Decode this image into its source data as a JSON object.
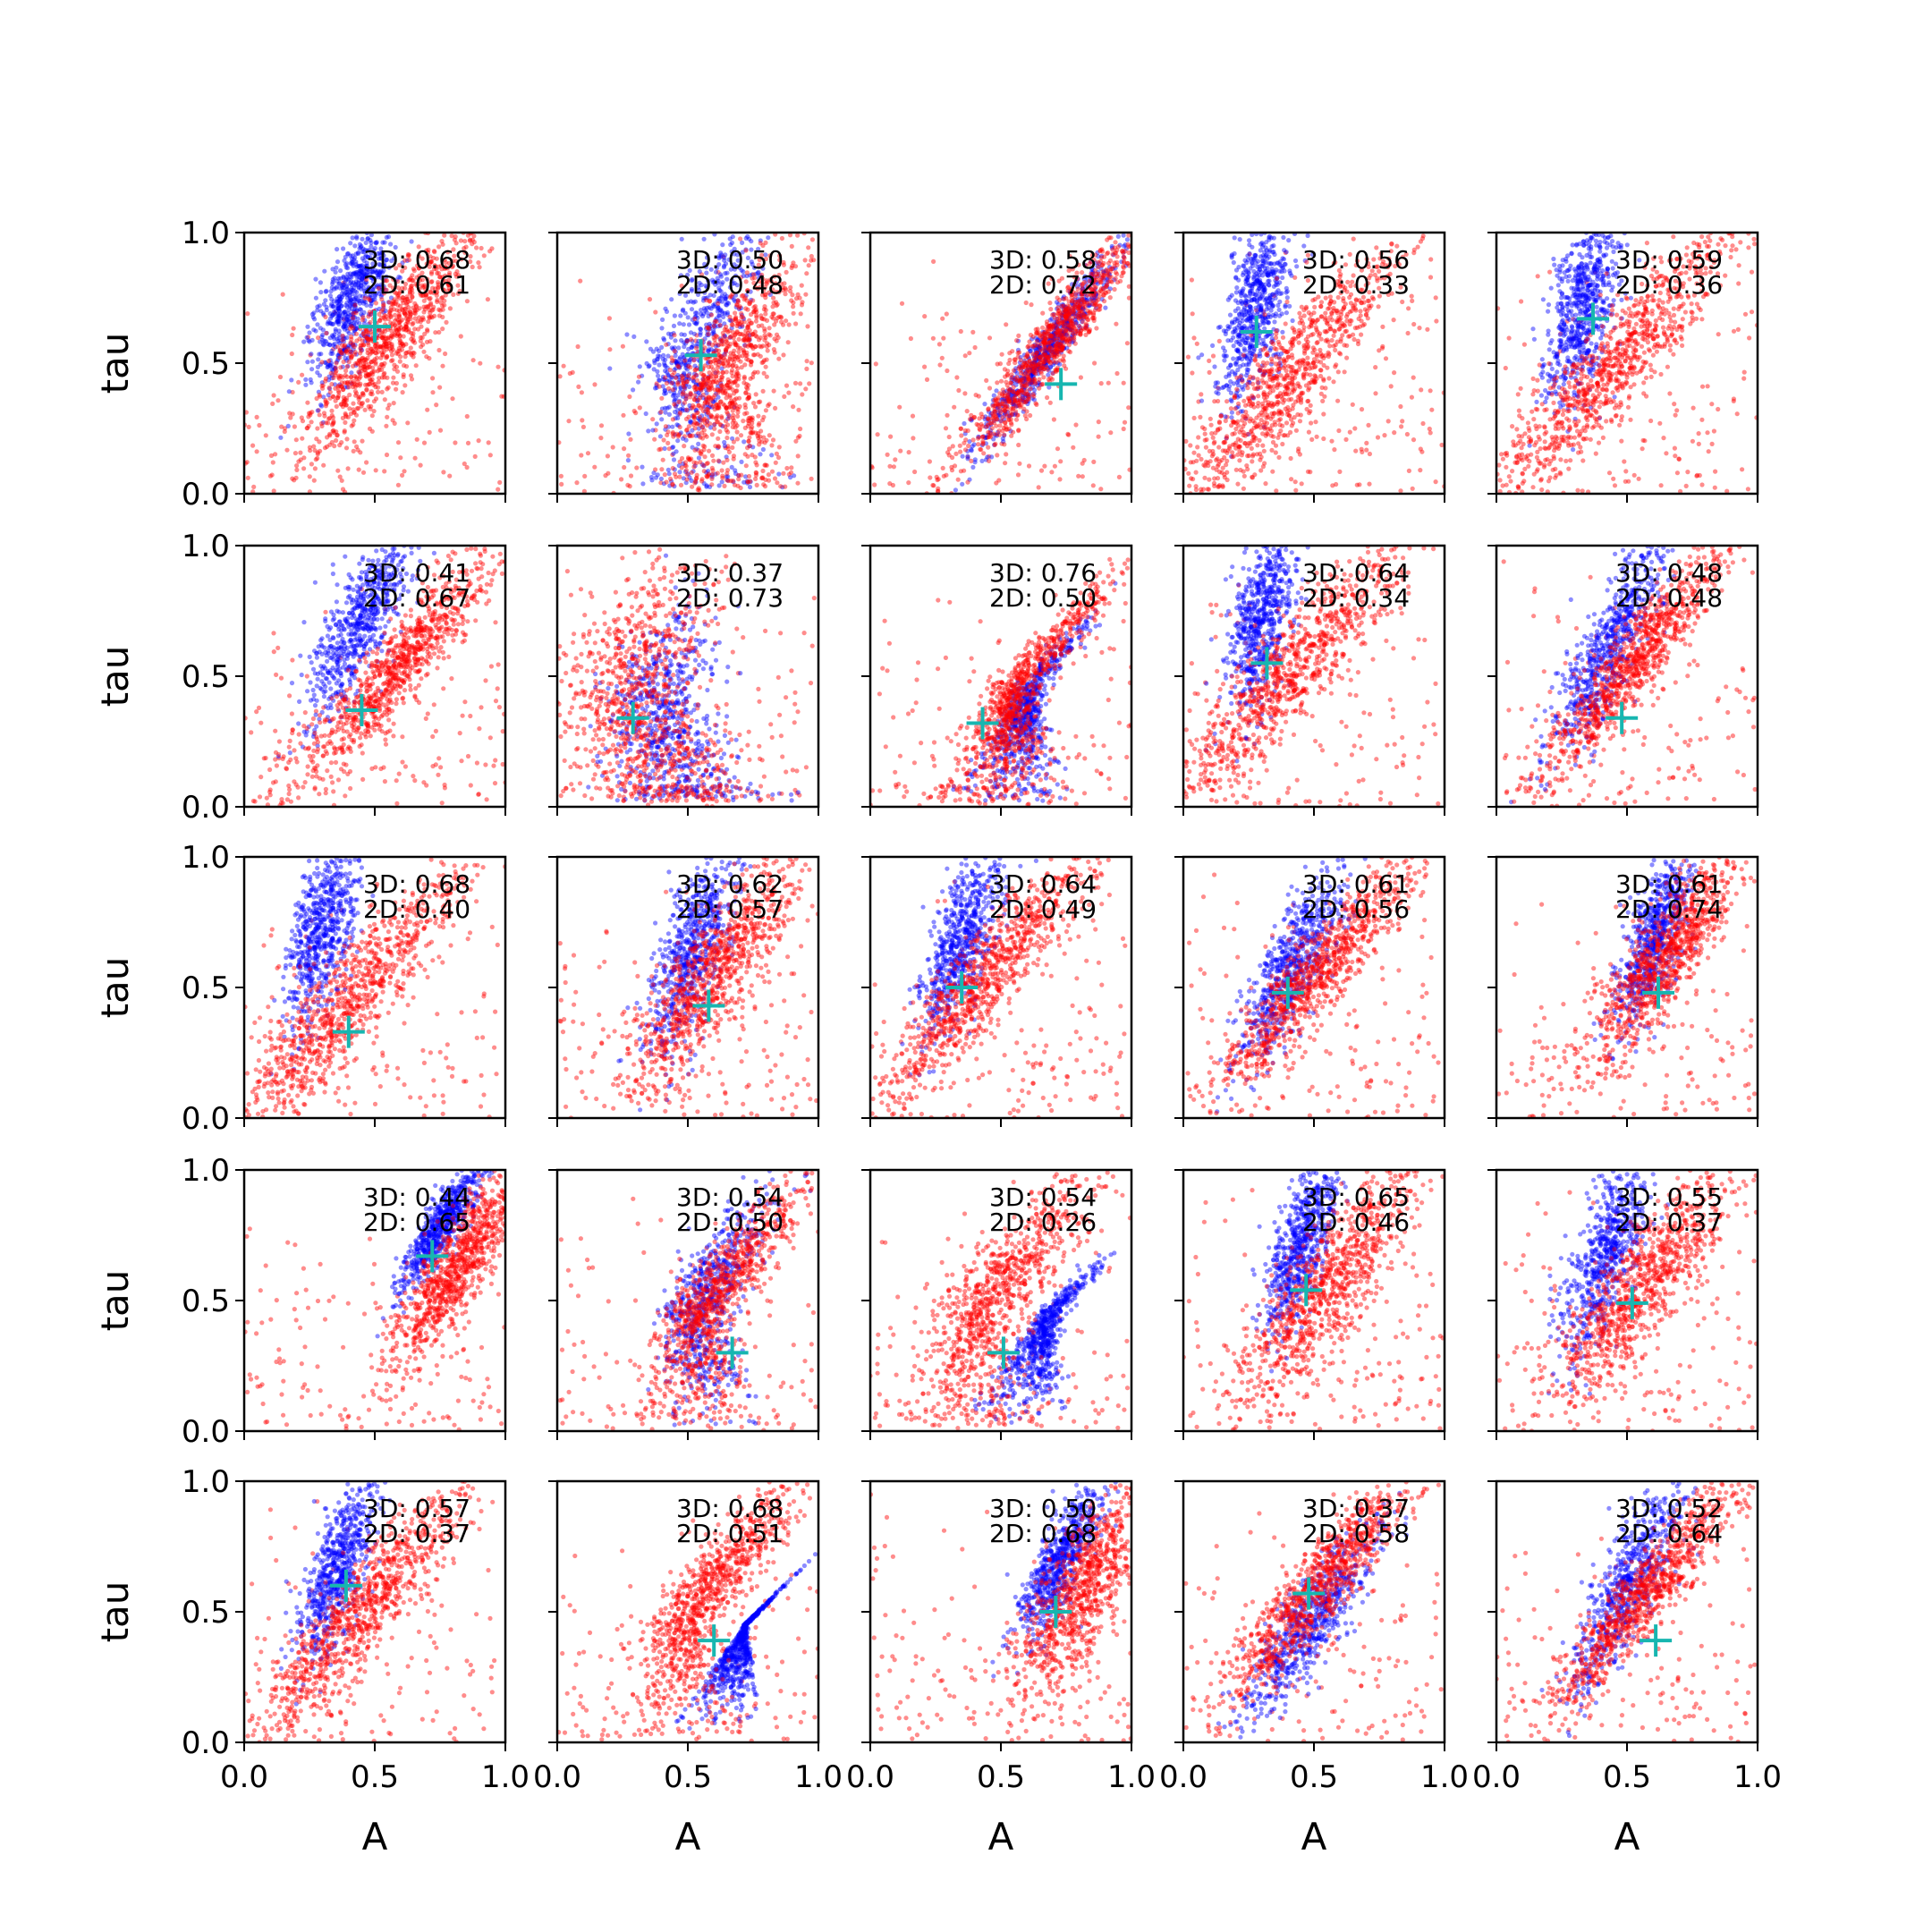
{
  "chart_data": {
    "type": "scatter",
    "layout": "5x5 grid of small multiples",
    "xlabel": "A",
    "ylabel": "tau",
    "xlim": [
      0,
      1
    ],
    "ylim": [
      0,
      1
    ],
    "xticks": [
      "0.0",
      "0.5",
      "1.0"
    ],
    "yticks": [
      "0.0",
      "0.5",
      "1.0"
    ],
    "series_colors": {
      "points_a": "#0000ff",
      "points_b": "#ff0000",
      "marker": "#17b6b0"
    },
    "grid": false,
    "legend": "none",
    "annotation_labels": {
      "first": "3D",
      "second": "2D"
    },
    "panels": [
      {
        "r3d": "0.68",
        "r2d": "0.61",
        "marker": [
          0.5,
          0.64
        ],
        "blue": {
          "cx": 0.42,
          "cy": 0.75,
          "sx": 0.07,
          "sy": 0.16,
          "tilt": -1.3,
          "extent": 1.0
        },
        "red": {
          "cx": 0.55,
          "cy": 0.6,
          "sx": 0.14,
          "sy": 0.22,
          "tilt": -1.1,
          "extent": 1.0
        }
      },
      {
        "r3d": "0.50",
        "r2d": "0.48",
        "marker": [
          0.55,
          0.53
        ],
        "blue": {
          "cx": 0.5,
          "cy": 0.55,
          "sx": 0.1,
          "sy": 0.28,
          "tilt": -1.2,
          "extent": 1.0,
          "curve": 1
        },
        "red": {
          "cx": 0.6,
          "cy": 0.45,
          "sx": 0.14,
          "sy": 0.25,
          "tilt": -1.1,
          "extent": 1.0,
          "curve": 1
        }
      },
      {
        "r3d": "0.58",
        "r2d": "0.72",
        "marker": [
          0.73,
          0.42
        ],
        "blue": {
          "cx": 0.68,
          "cy": 0.55,
          "sx": 0.08,
          "sy": 0.22,
          "tilt": -1.0,
          "extent": 1.0
        },
        "red": {
          "cx": 0.7,
          "cy": 0.58,
          "sx": 0.12,
          "sy": 0.25,
          "tilt": -1.0,
          "extent": 1.0
        }
      },
      {
        "r3d": "0.56",
        "r2d": "0.33",
        "marker": [
          0.28,
          0.62
        ],
        "blue": {
          "cx": 0.28,
          "cy": 0.72,
          "sx": 0.06,
          "sy": 0.18,
          "tilt": -1.4,
          "extent": 1.0
        },
        "red": {
          "cx": 0.4,
          "cy": 0.45,
          "sx": 0.2,
          "sy": 0.3,
          "tilt": -1.0,
          "extent": 1.0
        }
      },
      {
        "r3d": "0.59",
        "r2d": "0.36",
        "marker": [
          0.37,
          0.67
        ],
        "blue": {
          "cx": 0.33,
          "cy": 0.72,
          "sx": 0.06,
          "sy": 0.18,
          "tilt": -1.4,
          "extent": 1.0
        },
        "red": {
          "cx": 0.45,
          "cy": 0.5,
          "sx": 0.2,
          "sy": 0.3,
          "tilt": -1.0,
          "extent": 1.0
        }
      },
      {
        "r3d": "0.41",
        "r2d": "0.67",
        "marker": [
          0.45,
          0.37
        ],
        "blue": {
          "cx": 0.45,
          "cy": 0.72,
          "sx": 0.08,
          "sy": 0.2,
          "tilt": -1.2,
          "extent": 1.0
        },
        "red": {
          "cx": 0.6,
          "cy": 0.55,
          "sx": 0.16,
          "sy": 0.24,
          "tilt": -1.0,
          "extent": 1.0
        }
      },
      {
        "r3d": "0.37",
        "r2d": "0.73",
        "marker": [
          0.29,
          0.34
        ],
        "blue": {
          "cx": 0.3,
          "cy": 0.3,
          "sx": 0.12,
          "sy": 0.25,
          "tilt": -1.2,
          "extent": 1.0,
          "curve": 1
        },
        "red": {
          "cx": 0.25,
          "cy": 0.4,
          "sx": 0.15,
          "sy": 0.3,
          "tilt": -1.3,
          "extent": 1.0,
          "curve": 1
        }
      },
      {
        "r3d": "0.76",
        "r2d": "0.50",
        "marker": [
          0.43,
          0.32
        ],
        "blue": {
          "cx": 0.52,
          "cy": 0.35,
          "sx": 0.12,
          "sy": 0.2,
          "tilt": -0.9,
          "extent": 1.0,
          "curve": 1
        },
        "red": {
          "cx": 0.5,
          "cy": 0.4,
          "sx": 0.18,
          "sy": 0.26,
          "tilt": -0.9,
          "extent": 1.0,
          "curve": 1
        }
      },
      {
        "r3d": "0.64",
        "r2d": "0.34",
        "marker": [
          0.32,
          0.55
        ],
        "blue": {
          "cx": 0.3,
          "cy": 0.72,
          "sx": 0.06,
          "sy": 0.18,
          "tilt": -1.4,
          "extent": 1.0
        },
        "red": {
          "cx": 0.4,
          "cy": 0.5,
          "sx": 0.2,
          "sy": 0.3,
          "tilt": -1.0,
          "extent": 1.0
        }
      },
      {
        "r3d": "0.48",
        "r2d": "0.48",
        "marker": [
          0.48,
          0.34
        ],
        "blue": {
          "cx": 0.42,
          "cy": 0.6,
          "sx": 0.08,
          "sy": 0.22,
          "tilt": -1.2,
          "extent": 1.0
        },
        "red": {
          "cx": 0.52,
          "cy": 0.55,
          "sx": 0.14,
          "sy": 0.25,
          "tilt": -1.0,
          "extent": 1.0
        }
      },
      {
        "r3d": "0.68",
        "r2d": "0.40",
        "marker": [
          0.4,
          0.33
        ],
        "blue": {
          "cx": 0.3,
          "cy": 0.72,
          "sx": 0.06,
          "sy": 0.18,
          "tilt": -1.4,
          "extent": 1.0
        },
        "red": {
          "cx": 0.4,
          "cy": 0.45,
          "sx": 0.2,
          "sy": 0.3,
          "tilt": -1.0,
          "extent": 1.0
        }
      },
      {
        "r3d": "0.62",
        "r2d": "0.57",
        "marker": [
          0.58,
          0.43
        ],
        "blue": {
          "cx": 0.52,
          "cy": 0.65,
          "sx": 0.07,
          "sy": 0.2,
          "tilt": -1.3,
          "extent": 1.0
        },
        "red": {
          "cx": 0.6,
          "cy": 0.55,
          "sx": 0.14,
          "sy": 0.25,
          "tilt": -1.1,
          "extent": 1.0
        }
      },
      {
        "r3d": "0.64",
        "r2d": "0.49",
        "marker": [
          0.35,
          0.5
        ],
        "blue": {
          "cx": 0.35,
          "cy": 0.68,
          "sx": 0.07,
          "sy": 0.18,
          "tilt": -1.3,
          "extent": 1.0
        },
        "red": {
          "cx": 0.45,
          "cy": 0.55,
          "sx": 0.18,
          "sy": 0.28,
          "tilt": -1.0,
          "extent": 1.0
        }
      },
      {
        "r3d": "0.61",
        "r2d": "0.56",
        "marker": [
          0.4,
          0.48
        ],
        "blue": {
          "cx": 0.42,
          "cy": 0.6,
          "sx": 0.08,
          "sy": 0.2,
          "tilt": -1.2,
          "extent": 1.0
        },
        "red": {
          "cx": 0.5,
          "cy": 0.55,
          "sx": 0.16,
          "sy": 0.25,
          "tilt": -1.0,
          "extent": 1.0
        }
      },
      {
        "r3d": "0.61",
        "r2d": "0.74",
        "marker": [
          0.62,
          0.48
        ],
        "blue": {
          "cx": 0.6,
          "cy": 0.68,
          "sx": 0.06,
          "sy": 0.17,
          "tilt": -1.3,
          "extent": 1.0
        },
        "red": {
          "cx": 0.65,
          "cy": 0.62,
          "sx": 0.12,
          "sy": 0.22,
          "tilt": -1.1,
          "extent": 1.0
        }
      },
      {
        "r3d": "0.44",
        "r2d": "0.65",
        "marker": [
          0.72,
          0.67
        ],
        "blue": {
          "cx": 0.75,
          "cy": 0.78,
          "sx": 0.06,
          "sy": 0.14,
          "tilt": -1.1,
          "extent": 1.0
        },
        "red": {
          "cx": 0.83,
          "cy": 0.65,
          "sx": 0.1,
          "sy": 0.22,
          "tilt": -1.1,
          "extent": 1.0
        }
      },
      {
        "r3d": "0.54",
        "r2d": "0.50",
        "marker": [
          0.67,
          0.3
        ],
        "blue": {
          "cx": 0.55,
          "cy": 0.5,
          "sx": 0.1,
          "sy": 0.22,
          "tilt": -1.1,
          "extent": 1.0,
          "curve": 1
        },
        "red": {
          "cx": 0.58,
          "cy": 0.5,
          "sx": 0.15,
          "sy": 0.26,
          "tilt": -1.0,
          "extent": 1.0,
          "curve": 1
        }
      },
      {
        "r3d": "0.54",
        "r2d": "0.26",
        "marker": [
          0.51,
          0.3
        ],
        "blue": {
          "cx": 0.58,
          "cy": 0.35,
          "sx": 0.12,
          "sy": 0.15,
          "tilt": -0.7,
          "extent": 1.0,
          "curve": 1
        },
        "red": {
          "cx": 0.45,
          "cy": 0.5,
          "sx": 0.2,
          "sy": 0.28,
          "tilt": -1.0,
          "extent": 1.0,
          "curve": 1
        }
      },
      {
        "r3d": "0.65",
        "r2d": "0.46",
        "marker": [
          0.47,
          0.54
        ],
        "blue": {
          "cx": 0.45,
          "cy": 0.72,
          "sx": 0.06,
          "sy": 0.18,
          "tilt": -1.3,
          "extent": 1.0
        },
        "red": {
          "cx": 0.55,
          "cy": 0.55,
          "sx": 0.15,
          "sy": 0.26,
          "tilt": -1.1,
          "extent": 1.0
        }
      },
      {
        "r3d": "0.55",
        "r2d": "0.37",
        "marker": [
          0.52,
          0.49
        ],
        "blue": {
          "cx": 0.42,
          "cy": 0.68,
          "sx": 0.07,
          "sy": 0.2,
          "tilt": -1.3,
          "extent": 1.0
        },
        "red": {
          "cx": 0.55,
          "cy": 0.55,
          "sx": 0.15,
          "sy": 0.26,
          "tilt": -1.1,
          "extent": 1.0
        }
      },
      {
        "r3d": "0.57",
        "r2d": "0.37",
        "marker": [
          0.39,
          0.6
        ],
        "blue": {
          "cx": 0.35,
          "cy": 0.65,
          "sx": 0.06,
          "sy": 0.18,
          "tilt": -1.3,
          "extent": 1.0
        },
        "red": {
          "cx": 0.45,
          "cy": 0.5,
          "sx": 0.18,
          "sy": 0.28,
          "tilt": -1.0,
          "extent": 1.0
        }
      },
      {
        "r3d": "0.68",
        "r2d": "0.51",
        "marker": [
          0.6,
          0.39
        ],
        "blue": {
          "cx": 0.62,
          "cy": 0.35,
          "sx": 0.12,
          "sy": 0.12,
          "tilt": -0.8,
          "extent": 1.0,
          "curve": 1
        },
        "red": {
          "cx": 0.55,
          "cy": 0.55,
          "sx": 0.15,
          "sy": 0.26,
          "tilt": -1.0,
          "extent": 1.0,
          "curve": 1
        }
      },
      {
        "r3d": "0.50",
        "r2d": "0.68",
        "marker": [
          0.71,
          0.5
        ],
        "blue": {
          "cx": 0.72,
          "cy": 0.68,
          "sx": 0.06,
          "sy": 0.16,
          "tilt": -1.2,
          "extent": 1.0
        },
        "red": {
          "cx": 0.82,
          "cy": 0.6,
          "sx": 0.1,
          "sy": 0.25,
          "tilt": -1.2,
          "extent": 1.0
        }
      },
      {
        "r3d": "0.37",
        "r2d": "0.58",
        "marker": [
          0.48,
          0.57
        ],
        "blue": {
          "cx": 0.48,
          "cy": 0.45,
          "sx": 0.1,
          "sy": 0.2,
          "tilt": -1.1,
          "extent": 1.0
        },
        "red": {
          "cx": 0.52,
          "cy": 0.6,
          "sx": 0.16,
          "sy": 0.24,
          "tilt": -1.0,
          "extent": 1.0
        }
      },
      {
        "r3d": "0.52",
        "r2d": "0.64",
        "marker": [
          0.61,
          0.39
        ],
        "blue": {
          "cx": 0.5,
          "cy": 0.6,
          "sx": 0.08,
          "sy": 0.22,
          "tilt": -1.2,
          "extent": 1.0
        },
        "red": {
          "cx": 0.58,
          "cy": 0.58,
          "sx": 0.14,
          "sy": 0.25,
          "tilt": -1.0,
          "extent": 1.0
        }
      }
    ]
  }
}
